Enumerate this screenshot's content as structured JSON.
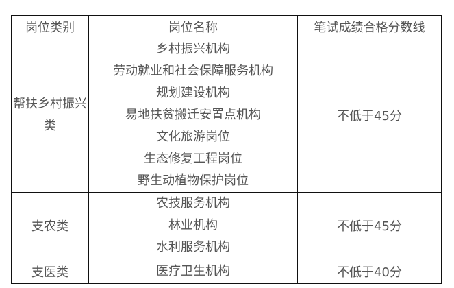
{
  "table": {
    "headers": [
      "岗位类别",
      "岗位名称",
      "笔试成绩合格分数线"
    ],
    "rows": [
      {
        "category": "帮扶乡村振兴类",
        "positions": [
          "乡村振兴机构",
          "劳动就业和社会保障服务机构",
          "规划建设机构",
          "易地扶贫搬迁安置点机构",
          "文化旅游岗位",
          "生态修复工程岗位",
          "野生动植物保护岗位"
        ],
        "score_line": "不低于45分"
      },
      {
        "category": "支农类",
        "positions": [
          "农技服务机构",
          "林业机构",
          "水利服务机构"
        ],
        "score_line": "不低于45分"
      },
      {
        "category": "支医类",
        "positions": [
          "医疗卫生机构"
        ],
        "score_line": "不低于40分"
      }
    ]
  }
}
